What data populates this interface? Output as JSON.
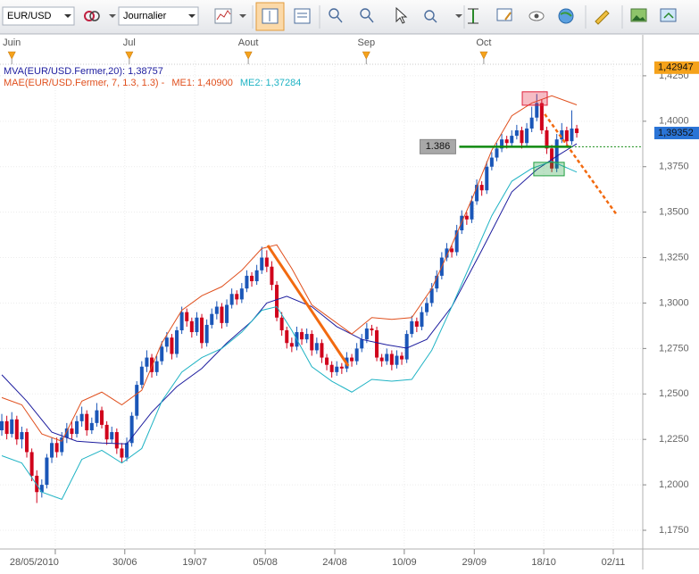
{
  "toolbar": {
    "symbol": "EUR/USD",
    "period": "Journalier"
  },
  "chart_data": {
    "type": "candlestick",
    "up_color": "#1a56b8",
    "down_color": "#d0021b",
    "xlim": [
      -0.36,
      128.2
    ],
    "ylim": [
      1.1647,
      1.4333
    ],
    "yticks": [
      {
        "value": 1.425,
        "label": "1,4250"
      },
      {
        "value": 1.4,
        "label": "1,4000"
      },
      {
        "value": 1.375,
        "label": "1,3750"
      },
      {
        "value": 1.35,
        "label": "1,3500"
      },
      {
        "value": 1.325,
        "label": "1,3250"
      },
      {
        "value": 1.3,
        "label": "1,3000"
      },
      {
        "value": 1.275,
        "label": "1,2750"
      },
      {
        "value": 1.25,
        "label": "1,2500"
      },
      {
        "value": 1.225,
        "label": "1,2250"
      },
      {
        "value": 1.2,
        "label": "1,2000"
      },
      {
        "value": 1.175,
        "label": "1,1750"
      }
    ],
    "xticks": [
      {
        "value": 10.7,
        "label": "28/05/2010"
      },
      {
        "value": 24.6,
        "label": "30/06"
      },
      {
        "value": 38.6,
        "label": "19/07"
      },
      {
        "value": 52.7,
        "label": "05/08"
      },
      {
        "value": 66.6,
        "label": "24/08"
      },
      {
        "value": 80.5,
        "label": "10/09"
      },
      {
        "value": 94.5,
        "label": "29/09"
      },
      {
        "value": 108.4,
        "label": "18/10"
      },
      {
        "value": 122.3,
        "label": "02/11"
      }
    ],
    "month_ticks": [
      {
        "value": 2,
        "label": "Juin"
      },
      {
        "value": 25.5,
        "label": "Jul"
      },
      {
        "value": 49.3,
        "label": "Aout"
      },
      {
        "value": 72.9,
        "label": "Sep"
      },
      {
        "value": 96.4,
        "label": "Oct"
      }
    ],
    "grid": true,
    "candles": [
      [
        1.23,
        1.239,
        1.227,
        1.235
      ],
      [
        1.235,
        1.238,
        1.225,
        1.228
      ],
      [
        1.228,
        1.24,
        1.226,
        1.236
      ],
      [
        1.236,
        1.238,
        1.222,
        1.225
      ],
      [
        1.225,
        1.232,
        1.22,
        1.229
      ],
      [
        1.229,
        1.231,
        1.215,
        1.218
      ],
      [
        1.218,
        1.22,
        1.202,
        1.205
      ],
      [
        1.205,
        1.208,
        1.19,
        1.196
      ],
      [
        1.196,
        1.203,
        1.193,
        1.2
      ],
      [
        1.2,
        1.217,
        1.198,
        1.215
      ],
      [
        1.215,
        1.226,
        1.212,
        1.223
      ],
      [
        1.223,
        1.226,
        1.215,
        1.218
      ],
      [
        1.218,
        1.229,
        1.216,
        1.226
      ],
      [
        1.226,
        1.234,
        1.223,
        1.231
      ],
      [
        1.231,
        1.235,
        1.225,
        1.228
      ],
      [
        1.228,
        1.238,
        1.226,
        1.235
      ],
      [
        1.235,
        1.243,
        1.232,
        1.239
      ],
      [
        1.239,
        1.241,
        1.227,
        1.23
      ],
      [
        1.23,
        1.237,
        1.228,
        1.234
      ],
      [
        1.234,
        1.245,
        1.232,
        1.241
      ],
      [
        1.241,
        1.243,
        1.231,
        1.233
      ],
      [
        1.233,
        1.235,
        1.222,
        1.225
      ],
      [
        1.225,
        1.232,
        1.223,
        1.229
      ],
      [
        1.229,
        1.231,
        1.217,
        1.22
      ],
      [
        1.22,
        1.223,
        1.212,
        1.215
      ],
      [
        1.215,
        1.226,
        1.213,
        1.223
      ],
      [
        1.223,
        1.24,
        1.221,
        1.238
      ],
      [
        1.238,
        1.257,
        1.236,
        1.255
      ],
      [
        1.255,
        1.268,
        1.253,
        1.265
      ],
      [
        1.265,
        1.274,
        1.262,
        1.27
      ],
      [
        1.27,
        1.272,
        1.259,
        1.262
      ],
      [
        1.262,
        1.271,
        1.26,
        1.268
      ],
      [
        1.268,
        1.279,
        1.266,
        1.276
      ],
      [
        1.276,
        1.284,
        1.273,
        1.281
      ],
      [
        1.281,
        1.283,
        1.269,
        1.272
      ],
      [
        1.272,
        1.287,
        1.27,
        1.285
      ],
      [
        1.285,
        1.298,
        1.283,
        1.295
      ],
      [
        1.295,
        1.297,
        1.287,
        1.29
      ],
      [
        1.29,
        1.292,
        1.281,
        1.284
      ],
      [
        1.284,
        1.295,
        1.282,
        1.292
      ],
      [
        1.292,
        1.294,
        1.275,
        1.278
      ],
      [
        1.278,
        1.291,
        1.276,
        1.288
      ],
      [
        1.288,
        1.297,
        1.286,
        1.294
      ],
      [
        1.294,
        1.301,
        1.291,
        1.298
      ],
      [
        1.298,
        1.3,
        1.286,
        1.289
      ],
      [
        1.289,
        1.302,
        1.287,
        1.299
      ],
      [
        1.299,
        1.308,
        1.297,
        1.305
      ],
      [
        1.305,
        1.307,
        1.299,
        1.302
      ],
      [
        1.302,
        1.311,
        1.3,
        1.308
      ],
      [
        1.308,
        1.318,
        1.306,
        1.315
      ],
      [
        1.315,
        1.317,
        1.309,
        1.312
      ],
      [
        1.312,
        1.321,
        1.31,
        1.318
      ],
      [
        1.318,
        1.331,
        1.316,
        1.325
      ],
      [
        1.325,
        1.329,
        1.317,
        1.32
      ],
      [
        1.32,
        1.323,
        1.307,
        1.31
      ],
      [
        1.31,
        1.312,
        1.29,
        1.292
      ],
      [
        1.292,
        1.295,
        1.282,
        1.285
      ],
      [
        1.285,
        1.287,
        1.275,
        1.278
      ],
      [
        1.278,
        1.281,
        1.273,
        1.276
      ],
      [
        1.276,
        1.287,
        1.274,
        1.284
      ],
      [
        1.284,
        1.286,
        1.277,
        1.28
      ],
      [
        1.28,
        1.286,
        1.278,
        1.283
      ],
      [
        1.283,
        1.285,
        1.271,
        1.274
      ],
      [
        1.274,
        1.281,
        1.272,
        1.278
      ],
      [
        1.278,
        1.28,
        1.267,
        1.27
      ],
      [
        1.27,
        1.272,
        1.263,
        1.266
      ],
      [
        1.266,
        1.268,
        1.259,
        1.262
      ],
      [
        1.262,
        1.268,
        1.26,
        1.265
      ],
      [
        1.265,
        1.267,
        1.261,
        1.264
      ],
      [
        1.264,
        1.273,
        1.262,
        1.27
      ],
      [
        1.27,
        1.272,
        1.265,
        1.268
      ],
      [
        1.268,
        1.278,
        1.266,
        1.275
      ],
      [
        1.275,
        1.283,
        1.273,
        1.28
      ],
      [
        1.28,
        1.289,
        1.278,
        1.286
      ],
      [
        1.286,
        1.288,
        1.282,
        1.285
      ],
      [
        1.285,
        1.287,
        1.268,
        1.27
      ],
      [
        1.27,
        1.272,
        1.265,
        1.268
      ],
      [
        1.268,
        1.275,
        1.266,
        1.272
      ],
      [
        1.272,
        1.274,
        1.263,
        1.266
      ],
      [
        1.266,
        1.274,
        1.264,
        1.271
      ],
      [
        1.271,
        1.273,
        1.266,
        1.269
      ],
      [
        1.269,
        1.285,
        1.267,
        1.283
      ],
      [
        1.283,
        1.293,
        1.281,
        1.29
      ],
      [
        1.29,
        1.292,
        1.284,
        1.287
      ],
      [
        1.287,
        1.298,
        1.285,
        1.295
      ],
      [
        1.295,
        1.303,
        1.293,
        1.3
      ],
      [
        1.3,
        1.311,
        1.298,
        1.308
      ],
      [
        1.308,
        1.318,
        1.306,
        1.315
      ],
      [
        1.315,
        1.328,
        1.313,
        1.325
      ],
      [
        1.325,
        1.333,
        1.323,
        1.33
      ],
      [
        1.33,
        1.332,
        1.325,
        1.328
      ],
      [
        1.328,
        1.343,
        1.326,
        1.34
      ],
      [
        1.34,
        1.351,
        1.338,
        1.348
      ],
      [
        1.348,
        1.35,
        1.343,
        1.346
      ],
      [
        1.346,
        1.359,
        1.344,
        1.356
      ],
      [
        1.356,
        1.368,
        1.354,
        1.365
      ],
      [
        1.365,
        1.367,
        1.359,
        1.362
      ],
      [
        1.362,
        1.378,
        1.36,
        1.375
      ],
      [
        1.375,
        1.383,
        1.373,
        1.38
      ],
      [
        1.38,
        1.388,
        1.378,
        1.385
      ],
      [
        1.385,
        1.393,
        1.383,
        1.39
      ],
      [
        1.39,
        1.392,
        1.385,
        1.388
      ],
      [
        1.388,
        1.395,
        1.386,
        1.392
      ],
      [
        1.392,
        1.398,
        1.39,
        1.395
      ],
      [
        1.395,
        1.397,
        1.385,
        1.388
      ],
      [
        1.388,
        1.399,
        1.386,
        1.396
      ],
      [
        1.396,
        1.408,
        1.394,
        1.402
      ],
      [
        1.402,
        1.415,
        1.4,
        1.41
      ],
      [
        1.41,
        1.412,
        1.393,
        1.395
      ],
      [
        1.395,
        1.397,
        1.382,
        1.385
      ],
      [
        1.385,
        1.387,
        1.372,
        1.374
      ],
      [
        1.374,
        1.393,
        1.372,
        1.39
      ],
      [
        1.39,
        1.399,
        1.388,
        1.395
      ],
      [
        1.395,
        1.397,
        1.386,
        1.389
      ],
      [
        1.389,
        1.406,
        1.387,
        1.396
      ],
      [
        1.396,
        1.398,
        1.391,
        1.3935
      ]
    ],
    "envelope_label": "MAE(EUR/USD.Fermer, 7, 1.3, 1.3) -",
    "overlays": [
      {
        "name": "MVA(EUR/USD.Fermer,20): 1,38757",
        "color": "#1c1c9e",
        "x": [
          0,
          5,
          10,
          15,
          20,
          25,
          30,
          35,
          40,
          45,
          50,
          53,
          57,
          62,
          67,
          72,
          77,
          81,
          85,
          90,
          96,
          102,
          107,
          111,
          115
        ],
        "values": [
          1.2605,
          1.246,
          1.229,
          1.224,
          1.223,
          1.2225,
          1.24,
          1.254,
          1.264,
          1.278,
          1.29,
          1.3,
          1.3037,
          1.298,
          1.287,
          1.28,
          1.277,
          1.2752,
          1.28,
          1.298,
          1.329,
          1.3611,
          1.3734,
          1.3808,
          1.3876
        ]
      },
      {
        "name": "ME1: 1,40900",
        "color": "#e0501e",
        "x": [
          0,
          4,
          8,
          12,
          16,
          20,
          24,
          28,
          32,
          36,
          40,
          44,
          48,
          52,
          55,
          58,
          62,
          66,
          70,
          74,
          78,
          82,
          86,
          90,
          94,
          98,
          102,
          106,
          110,
          115
        ],
        "values": [
          1.248,
          1.244,
          1.228,
          1.224,
          1.246,
          1.251,
          1.244,
          1.252,
          1.278,
          1.296,
          1.304,
          1.309,
          1.318,
          1.33,
          1.332,
          1.319,
          1.299,
          1.291,
          1.283,
          1.292,
          1.291,
          1.292,
          1.308,
          1.332,
          1.357,
          1.384,
          1.403,
          1.41,
          1.414,
          1.409
        ]
      },
      {
        "name": "ME2: 1,37284",
        "color": "#1fb3c4",
        "x": [
          0,
          4,
          8,
          12,
          16,
          20,
          24,
          28,
          32,
          36,
          40,
          44,
          48,
          52,
          55,
          58,
          62,
          66,
          70,
          74,
          78,
          82,
          86,
          90,
          94,
          98,
          102,
          106,
          110,
          115
        ],
        "values": [
          1.216,
          1.212,
          1.196,
          1.192,
          1.214,
          1.219,
          1.212,
          1.22,
          1.246,
          1.262,
          1.27,
          1.275,
          1.284,
          1.296,
          1.298,
          1.285,
          1.265,
          1.257,
          1.251,
          1.258,
          1.257,
          1.258,
          1.274,
          1.298,
          1.323,
          1.348,
          1.367,
          1.374,
          1.378,
          1.372
        ]
      }
    ],
    "price_markers": [
      {
        "value": 1.42947,
        "label": "1,42947",
        "color": "#f5a21b"
      },
      {
        "value": 1.39352,
        "label": "1,39352",
        "color": "#2a74d6"
      }
    ],
    "drawings": {
      "trendline": {
        "color": "#f26a10",
        "x": [
          53.2,
          69.3
        ],
        "values": [
          1.3317,
          1.2654
        ]
      },
      "projection": {
        "color": "#f26a10",
        "x": [
          108.6,
          122.9
        ],
        "values": [
          1.4039,
          1.3489
        ]
      },
      "level": {
        "value": 1.386,
        "color": "#108a10",
        "x": [
          91.5,
          113.9
        ]
      },
      "boxes": [
        {
          "color": "#e0203a",
          "x": [
            104.1,
            109.1
          ],
          "values": [
            1.4162,
            1.4088
          ]
        },
        {
          "color": "#20a040",
          "x": [
            106.4,
            112.5
          ],
          "values": [
            1.3774,
            1.37
          ]
        }
      ]
    }
  }
}
